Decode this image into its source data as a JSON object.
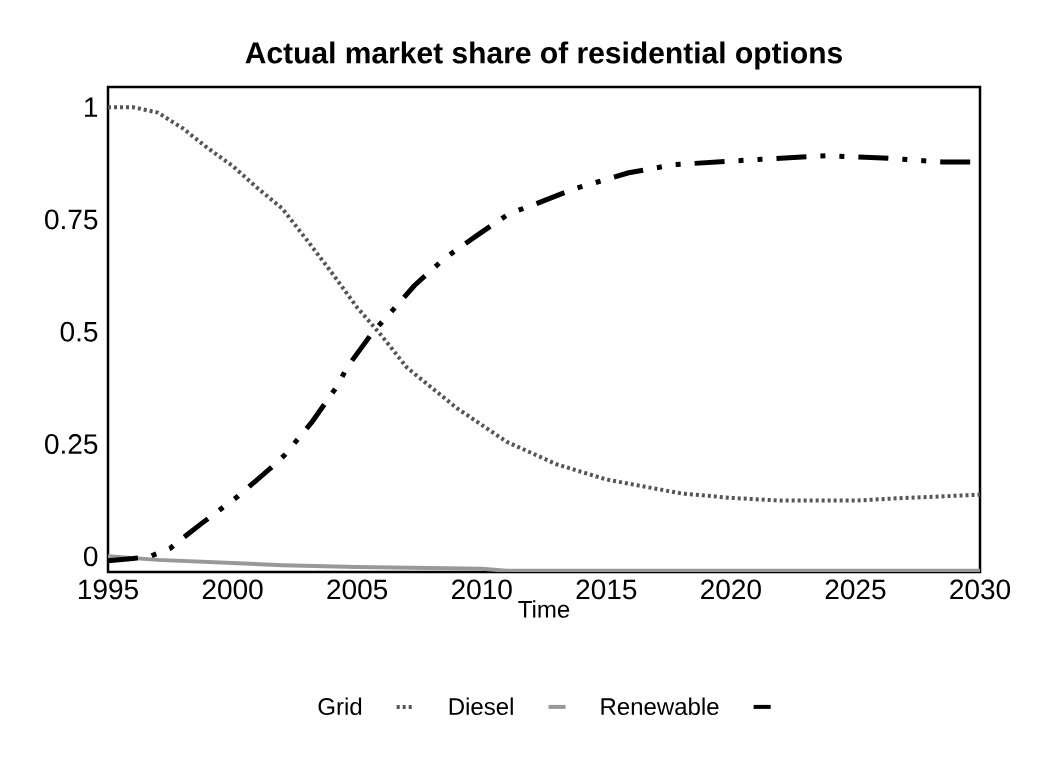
{
  "chart_data": {
    "type": "line",
    "title": "Actual market share of residential options",
    "xlabel": "Time",
    "xlim": [
      1995,
      2030
    ],
    "xticks": [
      1995,
      2000,
      2005,
      2010,
      2015,
      2020,
      2025,
      2030
    ],
    "ylim": [
      -0.035,
      1.045
    ],
    "yticks": [
      0,
      0.25,
      0.5,
      0.75,
      1
    ],
    "legend": "bottom",
    "marker": "none",
    "series": [
      {
        "name": "Grid",
        "color": "#555555",
        "line_style": "dotted",
        "x": [
          1995,
          1996,
          1997,
          1998,
          1999,
          2000,
          2001,
          2002,
          2003,
          2004,
          2005,
          2006,
          2007,
          2009,
          2011,
          2013,
          2015,
          2018,
          2020,
          2022,
          2025,
          2027,
          2030
        ],
        "values": [
          1.0,
          1.0,
          0.988,
          0.953,
          0.909,
          0.869,
          0.82,
          0.774,
          0.703,
          0.63,
          0.554,
          0.49,
          0.42,
          0.33,
          0.255,
          0.205,
          0.171,
          0.14,
          0.13,
          0.124,
          0.124,
          0.13,
          0.137
        ]
      },
      {
        "name": "Diesel",
        "color": "#999999",
        "line_style": "solid",
        "x": [
          1995,
          1997,
          2000,
          2002,
          2005,
          2010,
          2011,
          2030
        ],
        "values": [
          0.0,
          -0.008,
          -0.015,
          -0.02,
          -0.024,
          -0.028,
          -0.032,
          -0.032
        ]
      },
      {
        "name": "Renewable",
        "color": "#000000",
        "line_style": "dashed",
        "x": [
          1995,
          1996,
          1996.7,
          1997.5,
          1998.2,
          1998.8,
          2000.2,
          2001.5,
          2002.1,
          2003.2,
          2004.2,
          2004.6,
          2005.6,
          2006.7,
          2007.3,
          2008.5,
          2009.9,
          2011.1,
          2012.1,
          2013.7,
          2015.9,
          2017.7,
          2020.3,
          2023.8,
          2026.1,
          2028.5,
          2030
        ],
        "values": [
          -0.01,
          -0.005,
          0.0,
          0.018,
          0.049,
          0.075,
          0.133,
          0.195,
          0.226,
          0.3,
          0.379,
          0.421,
          0.497,
          0.565,
          0.603,
          0.663,
          0.718,
          0.763,
          0.783,
          0.818,
          0.854,
          0.872,
          0.881,
          0.892,
          0.887,
          0.878,
          0.878
        ]
      }
    ]
  }
}
